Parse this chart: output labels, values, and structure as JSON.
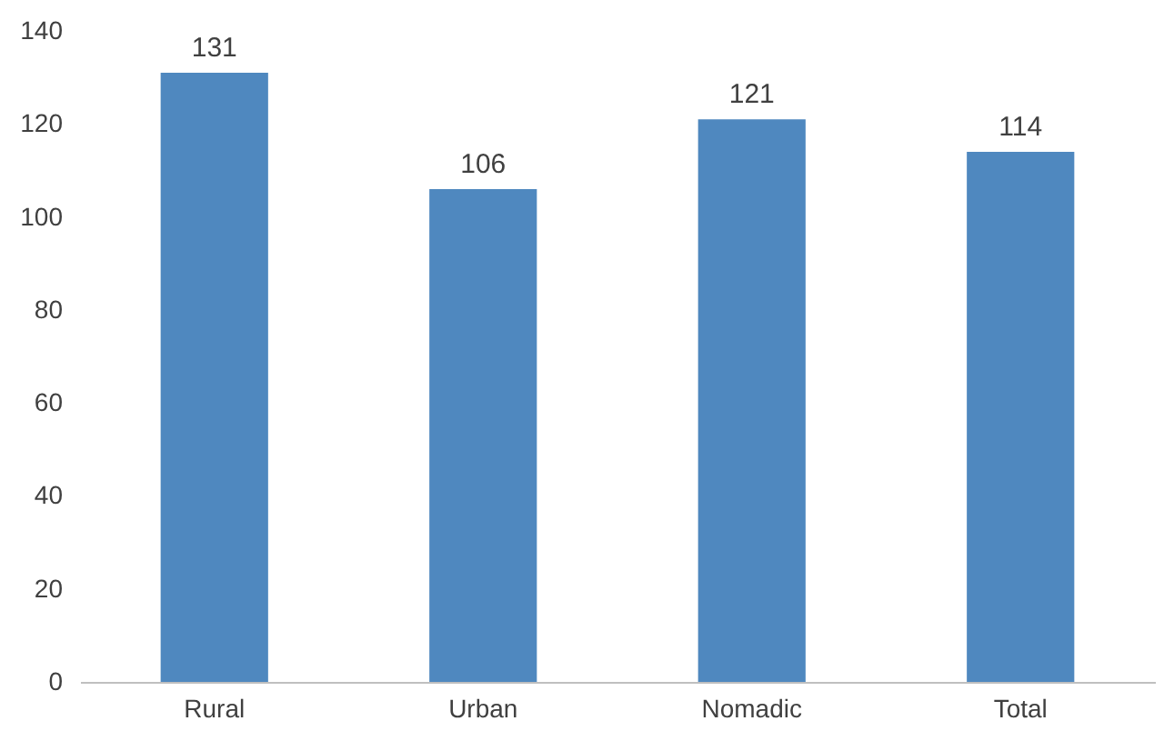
{
  "chart_data": {
    "type": "bar",
    "categories": [
      "Rural",
      "Urban",
      "Nomadic",
      "Total"
    ],
    "values": [
      131,
      106,
      121,
      114
    ],
    "color": "#4f88bf",
    "ylim": [
      0,
      140
    ],
    "yticks": [
      0,
      20,
      40,
      60,
      80,
      100,
      120,
      140
    ],
    "grid": false,
    "data_labels": true
  }
}
